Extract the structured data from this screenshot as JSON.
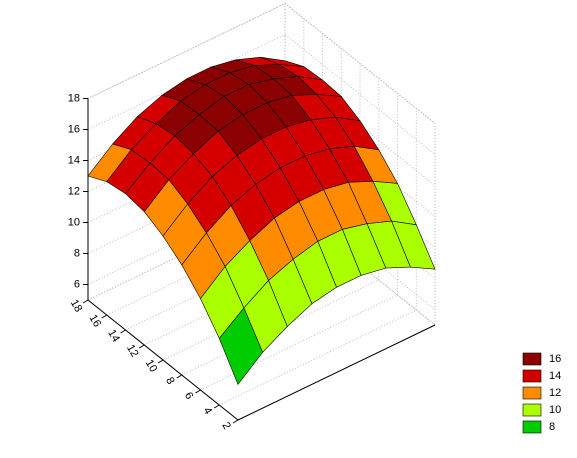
{
  "chart_data": {
    "type": "surface",
    "x": [
      2,
      4,
      6,
      8,
      10,
      12,
      14,
      16,
      18
    ],
    "y": [
      2,
      4,
      6,
      8,
      10,
      12,
      14,
      16,
      18
    ],
    "z": [
      [
        7.3,
        8.6,
        9.5,
        10.2,
        10.5,
        10.5,
        10.2,
        9.5,
        8.6
      ],
      [
        9.3,
        10.5,
        11.5,
        12.1,
        12.5,
        12.5,
        12.1,
        11.5,
        10.5
      ],
      [
        10.9,
        12.2,
        13.1,
        13.8,
        14.1,
        14.1,
        13.8,
        13.1,
        12.2
      ],
      [
        12.1,
        13.4,
        14.4,
        15.0,
        15.3,
        15.3,
        15.0,
        14.4,
        13.4
      ],
      [
        13.0,
        14.3,
        15.3,
        15.9,
        16.2,
        16.2,
        15.9,
        15.3,
        14.3
      ],
      [
        13.6,
        14.9,
        15.8,
        16.5,
        16.8,
        16.8,
        16.5,
        15.8,
        14.9
      ],
      [
        13.8,
        15.0,
        16.0,
        16.6,
        17.0,
        17.0,
        16.6,
        16.0,
        15.0
      ],
      [
        13.6,
        14.9,
        15.8,
        16.5,
        16.8,
        16.8,
        16.5,
        15.8,
        14.9
      ],
      [
        13.0,
        14.3,
        15.3,
        15.9,
        16.2,
        16.2,
        15.9,
        15.3,
        14.3
      ]
    ],
    "xlim": [
      2,
      18
    ],
    "xticks": [
      2,
      4,
      6,
      8,
      10,
      12,
      14,
      16,
      18
    ],
    "ylim": [
      2,
      18
    ],
    "zlim": [
      5,
      18
    ],
    "zticks": [
      6,
      8,
      10,
      12,
      14,
      16,
      18
    ],
    "levels": [
      {
        "name": "16",
        "value": 16,
        "color": "#8b0000"
      },
      {
        "name": "14",
        "value": 14,
        "color": "#d40000"
      },
      {
        "name": "12",
        "value": 12,
        "color": "#ff8c00"
      },
      {
        "name": "10",
        "value": 10,
        "color": "#aaff00"
      },
      {
        "name": "8",
        "value": 8,
        "color": "#00cc00"
      }
    ],
    "below_color": "#005a1e",
    "legend": "bottom-right"
  }
}
